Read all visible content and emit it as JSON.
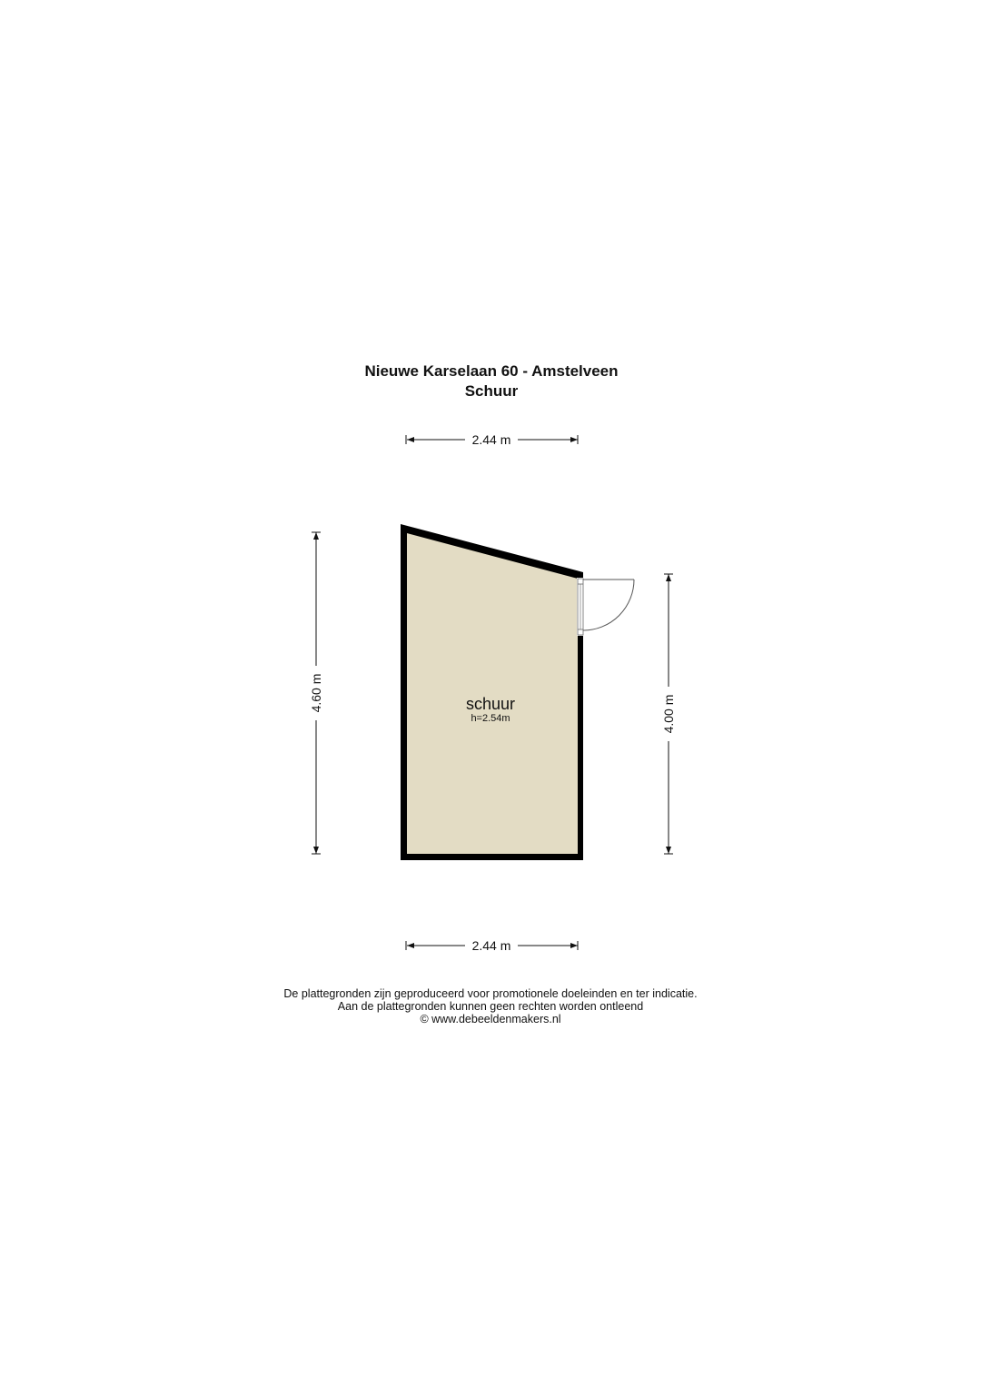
{
  "header": {
    "address": "Nieuwe Karselaan 60 - Amstelveen",
    "floor": "Schuur"
  },
  "dimensions": {
    "top": "2.44 m",
    "bottom": "2.44 m",
    "left": "4.60 m",
    "right": "4.00 m"
  },
  "room": {
    "name": "schuur",
    "height": "h=2.54m",
    "fill_color": "#e3dcc4",
    "wall_color": "#000000"
  },
  "footer": {
    "line1": "De plattegronden zijn geproduceerd voor promotionele doeleinden en ter indicatie.",
    "line2": "Aan de plattegronden kunnen geen rechten worden ontleend",
    "line3": "© www.debeeldenmakers.nl"
  }
}
